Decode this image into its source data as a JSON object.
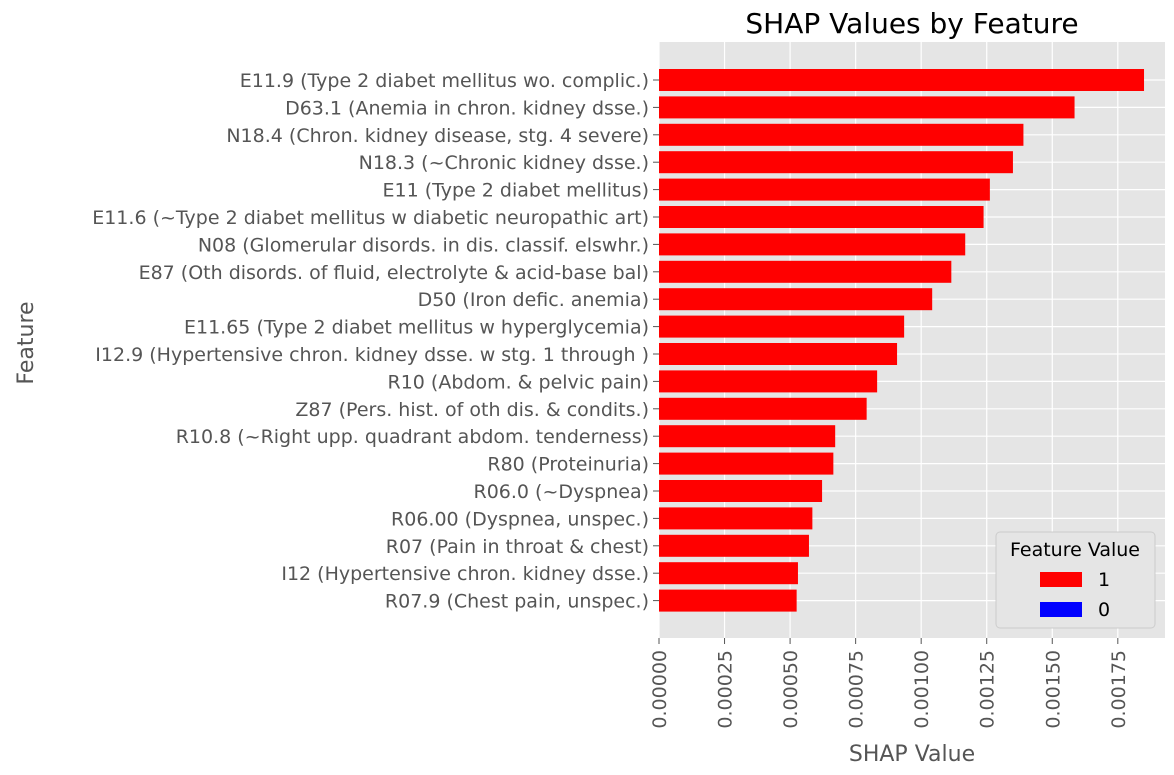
{
  "chart_data": {
    "type": "bar",
    "orientation": "horizontal",
    "title": "SHAP Values by Feature",
    "xlabel": "SHAP Value",
    "ylabel": "Feature",
    "xlim": [
      0,
      0.00193
    ],
    "xticks": [
      0,
      0.00025,
      0.0005,
      0.00075,
      0.001,
      0.00125,
      0.0015,
      0.00175
    ],
    "xtick_labels": [
      "0.00000",
      "0.00025",
      "0.00050",
      "0.00075",
      "0.00100",
      "0.00125",
      "0.00150",
      "0.00175"
    ],
    "grid": true,
    "categories": [
      "E11.9 (Type 2 diabet mellitus wo. complic.)",
      "D63.1 (Anemia in chron. kidney dsse.)",
      "N18.4 (Chron. kidney disease, stg. 4 severe)",
      "N18.3 (~Chronic kidney dsse.)",
      "E11 (Type 2 diabet mellitus)",
      "E11.6 (~Type 2 diabet mellitus w diabetic neuropathic art)",
      "N08 (Glomerular disords. in dis. classif. elswhr.)",
      "E87 (Oth disords. of fluid, electrolyte & acid-base bal)",
      "D50 (Iron defic. anemia)",
      "E11.65 (Type 2 diabet mellitus w hyperglycemia)",
      "I12.9 (Hypertensive chron. kidney dsse. w stg. 1 through )",
      "R10 (Abdom. & pelvic pain)",
      "Z87 (Pers. hist. of oth dis. & condits.)",
      "R10.8 (~Right upp. quadrant abdom. tenderness)",
      "R80 (Proteinuria)",
      "R06.0 (~Dyspnea)",
      "R06.00 (Dyspnea, unspec.)",
      "R07 (Pain in throat & chest)",
      "I12 (Hypertensive chron. kidney dsse.)",
      "R07.9 (Chest pain, unspec.)"
    ],
    "values": [
      0.00185,
      0.001585,
      0.00139,
      0.00135,
      0.001262,
      0.001238,
      0.001168,
      0.001115,
      0.001042,
      0.000935,
      0.000908,
      0.000832,
      0.000792,
      0.000672,
      0.000665,
      0.000622,
      0.000585,
      0.000572,
      0.00053,
      0.000525
    ],
    "feature_value": [
      1,
      1,
      1,
      1,
      1,
      1,
      1,
      1,
      1,
      1,
      1,
      1,
      1,
      1,
      1,
      1,
      1,
      1,
      1,
      1
    ],
    "legend": {
      "title": "Feature Value",
      "placement": "lower-right",
      "entries": [
        {
          "label": "1",
          "color": "#ff0000"
        },
        {
          "label": "0",
          "color": "#0000ff"
        }
      ]
    },
    "colors": {
      "1": "#ff0000",
      "0": "#0000ff"
    },
    "background": "#e5e5e5",
    "grid_color": "#ffffff",
    "text_color": "#555555"
  }
}
